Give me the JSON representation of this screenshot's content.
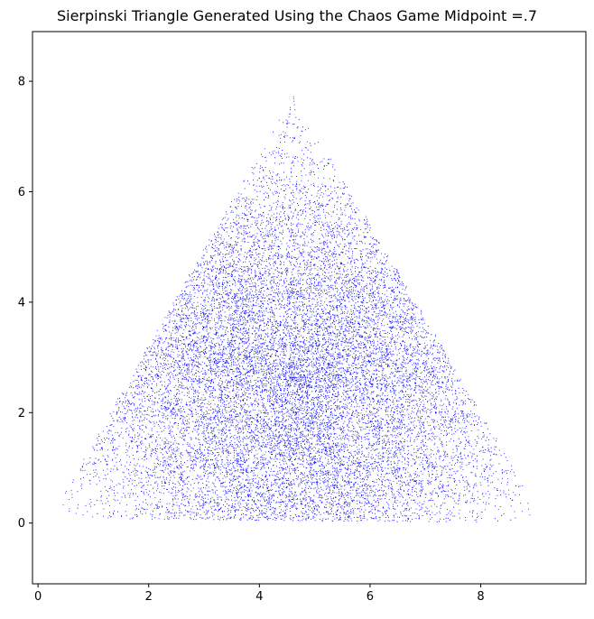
{
  "chart_data": {
    "type": "scatter",
    "title": "Sierpinski Triangle Generated Using the Chaos Game Midpoint =.7",
    "xlabel": "",
    "ylabel": "",
    "xlim": [
      -0.1,
      9.9
    ],
    "ylim": [
      -1.1,
      8.9
    ],
    "xticks": [
      0,
      2,
      4,
      6,
      8
    ],
    "yticks": [
      0,
      2,
      4,
      6,
      8
    ],
    "grid": false,
    "marker_color": "#0000ff",
    "series": [
      {
        "vertices": [
          [
            0.2,
            0.1
          ],
          [
            4.6,
            7.8
          ],
          [
            9.2,
            0.0
          ]
        ],
        "ratio": 0.7,
        "point_count": 30000
      }
    ]
  }
}
